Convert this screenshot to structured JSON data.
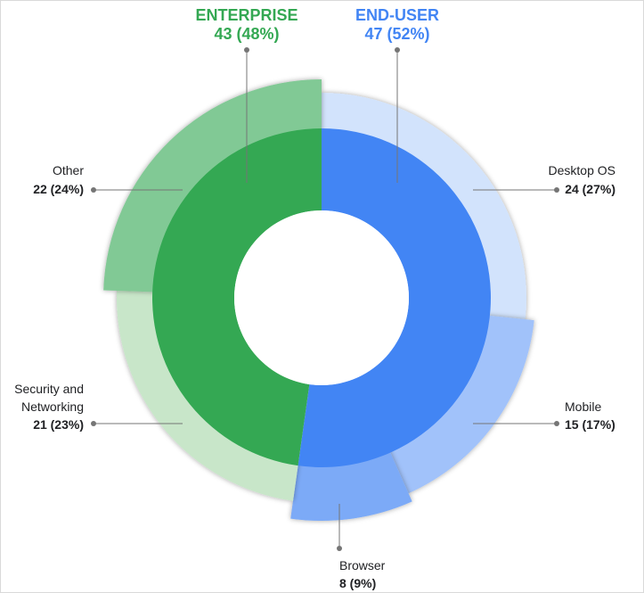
{
  "chart_data": {
    "type": "pie",
    "groups": [
      {
        "name": "ENTERPRISE",
        "value_label": "43 (48%)",
        "value": 43,
        "percent": 48,
        "color": "#34a853"
      },
      {
        "name": "END-USER",
        "value_label": "47 (52%)",
        "value": 47,
        "percent": 52,
        "color": "#4285f4"
      }
    ],
    "segments": [
      {
        "group": "END-USER",
        "name": "Desktop OS",
        "value_label": "24 (27%)",
        "value": 24,
        "percent": 27,
        "color": "#d2e3fc"
      },
      {
        "group": "END-USER",
        "name": "Mobile",
        "value_label": "15 (17%)",
        "value": 15,
        "percent": 17,
        "color": "#a1c2fa"
      },
      {
        "group": "END-USER",
        "name": "Browser",
        "value_label": "8 (9%)",
        "value": 8,
        "percent": 9,
        "color": "#7baaf7"
      },
      {
        "group": "ENTERPRISE",
        "name": "Security and Networking",
        "value_label": "21 (23%)",
        "value": 21,
        "percent": 23,
        "color": "#c8e6c9"
      },
      {
        "group": "ENTERPRISE",
        "name": "Other",
        "value_label": "22 (24%)",
        "value": 22,
        "percent": 24,
        "color": "#81c995"
      }
    ]
  }
}
